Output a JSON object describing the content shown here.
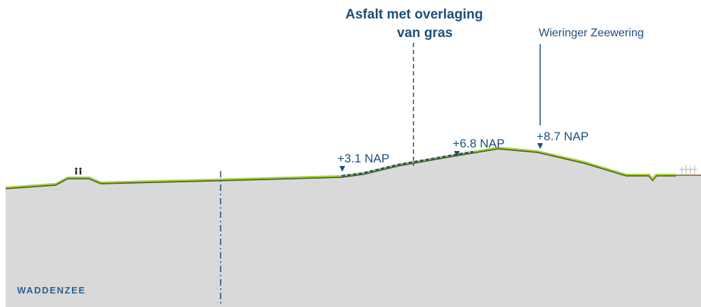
{
  "callout": {
    "line1": "Asfalt met overlaging",
    "line2": "van gras"
  },
  "dike_name": "Wieringer Zeewering",
  "levels": [
    {
      "label": "+3.1 NAP"
    },
    {
      "label": "+6.8 NAP"
    },
    {
      "label": "+8.7 NAP"
    }
  ],
  "sea_label": "WADDENZEE",
  "colors": {
    "text": "#1f4e79",
    "ground": "#d9d9d9",
    "grass": "#9acd32",
    "asphalt": "#2a4d7a",
    "marker": "#1f4e79"
  },
  "icons": [
    "people-icon",
    "trees-icon"
  ]
}
